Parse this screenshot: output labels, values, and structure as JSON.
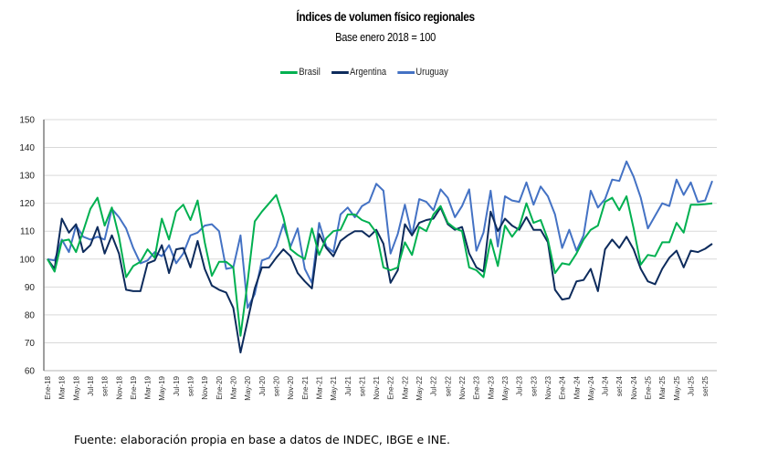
{
  "chart_data": {
    "type": "line",
    "title": "Índices de volumen físico regionales",
    "subtitle": "Base enero 2018 = 100",
    "xlabel": "",
    "ylabel": "",
    "ylim": [
      60,
      150
    ],
    "yticks": [
      60,
      70,
      80,
      90,
      100,
      110,
      120,
      130,
      140,
      150
    ],
    "grid": true,
    "legend_position": "top-center",
    "x_tick_labels": [
      "Ene-18",
      "Mar-18",
      "May-18",
      "Jul-18",
      "set-18",
      "Nov-18",
      "Ene-19",
      "Mar-19",
      "May-19",
      "Jul-19",
      "set-19",
      "Nov-19",
      "Ene-20",
      "Mar-20",
      "May-20",
      "Jul-20",
      "set-20",
      "Nov-20",
      "Ene-21",
      "Mar-21",
      "May-21",
      "Jul-21",
      "set-21",
      "Nov-21",
      "Ene-22",
      "Mar-22",
      "May-22",
      "Jul-22",
      "set-22",
      "Nov-22",
      "Ene-23",
      "Mar-23",
      "May-23",
      "Jul-23",
      "set-23",
      "Nov-23",
      "Ene-24",
      "Mar-24",
      "May-24",
      "Jul-24",
      "set-24",
      "Nov-24",
      "Ene-25",
      "Mar-25",
      "May-25",
      "Jul-25",
      "set-25"
    ],
    "x_start": "Ene-18",
    "x_frequency": "monthly",
    "series": [
      {
        "name": "Brasil",
        "color": "#00B050",
        "values": [
          100,
          95.5,
          106.5,
          107,
          102.5,
          110,
          118,
          122,
          112,
          118.5,
          108,
          93.5,
          97.5,
          99,
          103.5,
          100.5,
          114.5,
          107,
          117,
          119.5,
          114,
          121,
          106,
          94,
          99,
          99,
          97,
          72.5,
          92,
          113.5,
          117,
          120,
          123,
          115,
          103.5,
          101.5,
          100,
          111,
          101.5,
          107.5,
          110,
          110.5,
          116,
          116,
          114,
          113,
          109.5,
          97,
          96,
          97,
          106,
          101.5,
          111.5,
          110,
          116,
          119,
          113,
          111,
          110,
          97,
          96,
          93.5,
          107,
          97.5,
          112,
          108,
          111.5,
          120,
          113,
          114,
          107,
          95,
          98.5,
          98,
          102,
          107,
          110.5,
          112,
          120.5,
          122,
          117.5,
          122.5,
          111,
          98,
          101.5,
          101,
          106,
          106,
          113,
          109.5,
          119.5,
          119.5,
          119.7,
          120
        ]
      },
      {
        "name": "Argentina",
        "color": "#0D2B5C",
        "values": [
          100,
          96.5,
          114.5,
          109.5,
          112.5,
          102.5,
          105,
          111.5,
          102,
          108.5,
          102,
          89,
          88.5,
          88.5,
          98.5,
          99.5,
          105,
          95,
          103.5,
          104,
          97,
          106.5,
          96.5,
          90.5,
          89,
          88,
          82.5,
          66.5,
          78,
          89.5,
          97,
          97,
          100.5,
          103.5,
          101,
          95,
          92,
          89.5,
          109,
          104,
          101,
          106.5,
          108.5,
          110,
          110,
          108,
          110.5,
          105.5,
          91.5,
          96,
          112.5,
          108.5,
          113,
          114,
          114.5,
          118.5,
          112.5,
          110.5,
          111.5,
          102,
          97,
          95.5,
          117,
          110,
          114.5,
          112,
          110.5,
          115,
          110.5,
          110.5,
          106,
          89,
          85.5,
          86,
          92,
          92.5,
          96.5,
          88.5,
          103.5,
          107,
          104,
          108,
          103.5,
          96.5,
          92,
          91,
          96.5,
          100.5,
          103,
          97,
          103,
          102.5,
          103.7,
          105.5
        ]
      },
      {
        "name": "Uruguay",
        "color": "#4472C4",
        "values": [
          100,
          99.5,
          107,
          102.5,
          112,
          108,
          107,
          108,
          107,
          118,
          115,
          111,
          104,
          98.5,
          99.5,
          102.5,
          101,
          105,
          98.5,
          102,
          108.5,
          109.5,
          112,
          112.5,
          110,
          96.5,
          97,
          108.5,
          82.5,
          87.5,
          99.5,
          100.5,
          104.5,
          112.5,
          104.5,
          111,
          96.5,
          91.5,
          113,
          104.5,
          102.5,
          116,
          118.5,
          115,
          119,
          120.5,
          127,
          124.5,
          102,
          109,
          119.5,
          108.5,
          121.5,
          120.5,
          117.5,
          125,
          122,
          115,
          119,
          125,
          103,
          109.5,
          124.5,
          104.5,
          122.5,
          121,
          120.5,
          127.5,
          119.5,
          126,
          122.5,
          116,
          104,
          110.5,
          103,
          108.5,
          124.5,
          118.5,
          121.5,
          128.5,
          128,
          135,
          129.5,
          122,
          111,
          115.5,
          120,
          119,
          128.5,
          123,
          127.5,
          120.5,
          121,
          128
        ]
      }
    ]
  },
  "footer": {
    "source": "Fuente: elaboración propia en base a datos de INDEC, IBGE e INE."
  }
}
